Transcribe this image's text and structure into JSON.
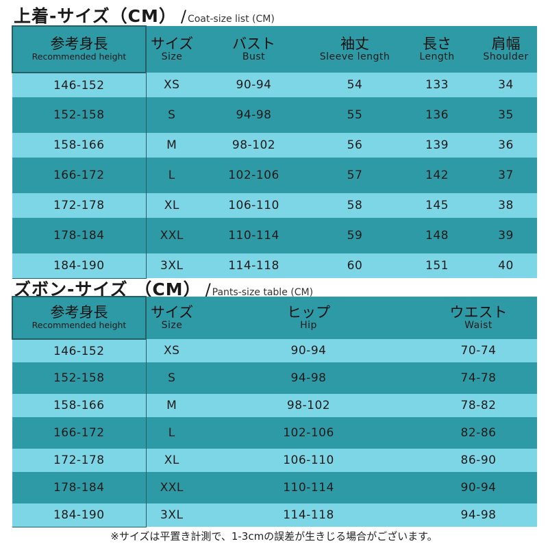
{
  "coat": {
    "title_jp": "上着-サイズ（CM）",
    "slash": "/",
    "title_en": "Coat-size list (CM)",
    "headers": [
      {
        "jp": "参考身長",
        "en": "Recommended height"
      },
      {
        "jp": "サイズ",
        "en": "Size"
      },
      {
        "jp": "バスト",
        "en": "Bust"
      },
      {
        "jp": "袖丈",
        "en": "Sleeve length"
      },
      {
        "jp": "長さ",
        "en": "Length"
      },
      {
        "jp": "肩幅",
        "en": "Shoulder"
      }
    ],
    "rows": [
      [
        "146-152",
        "XS",
        "90-94",
        "54",
        "133",
        "34"
      ],
      [
        "152-158",
        "S",
        "94-98",
        "55",
        "136",
        "35"
      ],
      [
        "158-166",
        "M",
        "98-102",
        "56",
        "139",
        "36"
      ],
      [
        "166-172",
        "L",
        "102-106",
        "57",
        "142",
        "37"
      ],
      [
        "172-178",
        "XL",
        "106-110",
        "58",
        "145",
        "38"
      ],
      [
        "178-184",
        "XXL",
        "110-114",
        "59",
        "148",
        "39"
      ],
      [
        "184-190",
        "3XL",
        "114-118",
        "60",
        "151",
        "40"
      ]
    ]
  },
  "pants": {
    "title_jp": "ズボン-サイズ （CM）",
    "slash": "/",
    "title_en": "Pants-size table (CM)",
    "headers": [
      {
        "jp": "参考身長",
        "en": "Recommended height"
      },
      {
        "jp": "サイズ",
        "en": "Size"
      },
      {
        "jp": "ヒップ",
        "en": "Hip"
      },
      {
        "jp": "ウエスト",
        "en": "Waist"
      }
    ],
    "rows": [
      [
        "146-152",
        "XS",
        "90-94",
        "70-74"
      ],
      [
        "152-158",
        "S",
        "94-98",
        "74-78"
      ],
      [
        "158-166",
        "M",
        "98-102",
        "78-82"
      ],
      [
        "166-172",
        "L",
        "102-106",
        "82-86"
      ],
      [
        "172-178",
        "XL",
        "106-110",
        "86-90"
      ],
      [
        "178-184",
        "XXL",
        "110-114",
        "90-94"
      ],
      [
        "184-190",
        "3XL",
        "114-118",
        "94-98"
      ]
    ]
  },
  "footnote": "※サイズは平置き計測で、1-3cmの誤差が生きじる場合がございます。",
  "colors": {
    "row_dark": "#2e9aa5",
    "row_light": "#7dd6e6",
    "border": "#245f66"
  }
}
